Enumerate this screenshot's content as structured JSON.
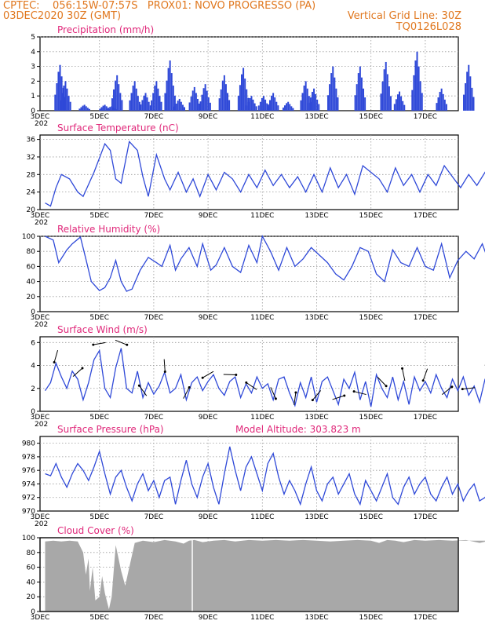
{
  "header": {
    "line1": "CPTEC:    056:15W-07:57S   PROX01: NOVO PROGRESSO (PA)",
    "line2": "03DEC2020 30Z (GMT)",
    "grid_note": "Vertical Grid Line: 30Z",
    "run_code": "TQ0126L028"
  },
  "date_labels": [
    "3DEC",
    "5DEC",
    "7DEC",
    "9DEC",
    "11DEC",
    "13DEC",
    "15DEC",
    "17DEC"
  ],
  "cut_label": "202",
  "colors": {
    "line": "#2f49d8",
    "bar": "#2f49d8",
    "title": "#e0287a",
    "header": "#e0771e",
    "cloud": "#a8a8a8"
  },
  "chart_data": [
    {
      "type": "bar",
      "title": "Precipitation (mm/h)",
      "ylim": [
        0,
        5
      ],
      "yticks": [
        "0",
        "1",
        "2",
        "3",
        "4",
        "5"
      ],
      "x_unit": "days since 03DEC 06Z",
      "bursts": [
        {
          "x": 0.55,
          "peak": 3.1
        },
        {
          "x": 0.75,
          "peak": 2.0
        },
        {
          "x": 1.45,
          "peak": 0.4
        },
        {
          "x": 2.2,
          "peak": 0.4
        },
        {
          "x": 2.45,
          "peak": 0.3
        },
        {
          "x": 2.65,
          "peak": 2.4
        },
        {
          "x": 3.3,
          "peak": 2.0
        },
        {
          "x": 3.7,
          "peak": 1.2
        },
        {
          "x": 4.1,
          "peak": 2.0
        },
        {
          "x": 4.6,
          "peak": 3.4
        },
        {
          "x": 4.95,
          "peak": 0.8
        },
        {
          "x": 5.5,
          "peak": 1.6
        },
        {
          "x": 5.9,
          "peak": 1.8
        },
        {
          "x": 6.6,
          "peak": 2.4
        },
        {
          "x": 7.3,
          "peak": 2.9
        },
        {
          "x": 7.6,
          "peak": 1.0
        },
        {
          "x": 8.05,
          "peak": 1.0
        },
        {
          "x": 8.4,
          "peak": 1.2
        },
        {
          "x": 8.95,
          "peak": 0.6
        },
        {
          "x": 9.6,
          "peak": 2.0
        },
        {
          "x": 9.9,
          "peak": 1.5
        },
        {
          "x": 10.6,
          "peak": 3.0
        },
        {
          "x": 11.6,
          "peak": 3.0
        },
        {
          "x": 12.55,
          "peak": 3.3
        },
        {
          "x": 13.05,
          "peak": 1.3
        },
        {
          "x": 13.7,
          "peak": 4.0
        },
        {
          "x": 14.6,
          "peak": 1.5
        },
        {
          "x": 15.6,
          "peak": 3.1
        }
      ]
    },
    {
      "type": "line",
      "title": "Surface Temperature (nC)",
      "ylim": [
        20,
        37
      ],
      "yticks": [
        "20",
        "24",
        "28",
        "32",
        "36"
      ],
      "x_unit": "days since 03DEC 06Z",
      "x": [
        0,
        0.2,
        0.4,
        0.6,
        0.9,
        1.2,
        1.4,
        1.8,
        2.2,
        2.4,
        2.6,
        2.8,
        3.1,
        3.4,
        3.6,
        3.8,
        4.1,
        4.4,
        4.6,
        4.9,
        5.2,
        5.45,
        5.7,
        6.0,
        6.3,
        6.6,
        6.9,
        7.2,
        7.5,
        7.8,
        8.1,
        8.4,
        8.7,
        9.0,
        9.3,
        9.6,
        9.9,
        10.2,
        10.5,
        10.8,
        11.1,
        11.4,
        11.7,
        12.0,
        12.3,
        12.6,
        12.9,
        13.2,
        13.5,
        13.8,
        14.1,
        14.4,
        14.7,
        15.0,
        15.3,
        15.6,
        15.9,
        16.2,
        16.4
      ],
      "y": [
        21.5,
        20.8,
        25.0,
        28.0,
        27.0,
        24.0,
        23.0,
        28.5,
        35.0,
        33.5,
        27.0,
        26.0,
        35.5,
        33.5,
        27.5,
        23.0,
        32.5,
        27.0,
        24.5,
        28.5,
        24.0,
        27.0,
        23.0,
        28.0,
        24.5,
        28.5,
        27.0,
        24.0,
        28.0,
        25.0,
        29.0,
        25.5,
        28.0,
        25.0,
        27.5,
        24.0,
        28.0,
        24.0,
        29.5,
        25.0,
        28.0,
        23.5,
        30.0,
        28.5,
        27.0,
        24.0,
        29.5,
        25.5,
        28.0,
        24.0,
        28.0,
        25.5,
        30.0,
        27.5,
        25.0,
        28.0,
        25.5,
        28.5,
        27.0
      ]
    },
    {
      "type": "line",
      "title": "Relative Humidity (%)",
      "ylim": [
        0,
        100
      ],
      "yticks": [
        "0",
        "20",
        "40",
        "60",
        "80",
        "100"
      ],
      "x_unit": "days since 03DEC 06Z",
      "x": [
        0,
        0.3,
        0.5,
        0.8,
        1.0,
        1.3,
        1.5,
        1.7,
        2.0,
        2.2,
        2.4,
        2.6,
        2.8,
        3.0,
        3.2,
        3.5,
        3.8,
        4.1,
        4.3,
        4.6,
        4.8,
        5.0,
        5.3,
        5.6,
        5.8,
        6.1,
        6.3,
        6.6,
        6.9,
        7.2,
        7.5,
        7.8,
        8.0,
        8.3,
        8.6,
        8.9,
        9.2,
        9.5,
        9.8,
        10.1,
        10.4,
        10.7,
        11.0,
        11.3,
        11.6,
        11.9,
        12.2,
        12.5,
        12.8,
        13.1,
        13.4,
        13.7,
        14.0,
        14.3,
        14.6,
        14.9,
        15.2,
        15.5,
        15.8,
        16.1,
        16.4
      ],
      "y": [
        100,
        95,
        65,
        82,
        90,
        99,
        70,
        40,
        28,
        32,
        45,
        68,
        40,
        27,
        30,
        55,
        72,
        65,
        60,
        88,
        55,
        70,
        85,
        60,
        90,
        55,
        62,
        85,
        60,
        52,
        88,
        65,
        100,
        80,
        55,
        85,
        60,
        70,
        85,
        75,
        65,
        50,
        42,
        60,
        85,
        80,
        50,
        40,
        82,
        65,
        60,
        85,
        60,
        55,
        90,
        45,
        68,
        80,
        70,
        90,
        60
      ]
    },
    {
      "type": "line",
      "title": "Surface Wind (m/s)",
      "ylim": [
        0,
        6.5
      ],
      "yticks": [
        "0",
        "2",
        "4",
        "6"
      ],
      "x_unit": "days since 03DEC 06Z",
      "x": [
        0,
        0.2,
        0.4,
        0.6,
        0.8,
        1.0,
        1.2,
        1.4,
        1.6,
        1.8,
        2.0,
        2.2,
        2.4,
        2.6,
        2.8,
        3.0,
        3.2,
        3.4,
        3.6,
        3.8,
        4.0,
        4.2,
        4.4,
        4.6,
        4.8,
        5.0,
        5.2,
        5.4,
        5.6,
        5.8,
        6.0,
        6.2,
        6.4,
        6.6,
        6.8,
        7.0,
        7.2,
        7.4,
        7.6,
        7.8,
        8.0,
        8.2,
        8.4,
        8.6,
        8.8,
        9.0,
        9.2,
        9.4,
        9.6,
        9.8,
        10.0,
        10.2,
        10.4,
        10.6,
        10.8,
        11.0,
        11.2,
        11.4,
        11.6,
        11.8,
        12.0,
        12.2,
        12.4,
        12.6,
        12.8,
        13.0,
        13.2,
        13.4,
        13.6,
        13.8,
        14.0,
        14.2,
        14.4,
        14.6,
        14.8,
        15.0,
        15.2,
        15.4,
        15.6,
        15.8,
        16.0,
        16.2,
        16.4
      ],
      "y": [
        1.8,
        2.5,
        4.2,
        3.0,
        2.0,
        3.5,
        2.8,
        1.0,
        2.5,
        4.5,
        5.3,
        2.0,
        1.2,
        3.8,
        5.5,
        2.0,
        1.6,
        3.5,
        1.2,
        2.5,
        1.5,
        2.2,
        3.4,
        1.6,
        2.0,
        3.2,
        1.0,
        2.5,
        3.0,
        1.8,
        2.6,
        3.2,
        2.0,
        1.4,
        2.6,
        3.0,
        1.2,
        2.4,
        1.6,
        3.0,
        2.0,
        2.4,
        1.0,
        2.8,
        3.0,
        1.6,
        0.5,
        2.5,
        1.2,
        3.0,
        0.8,
        2.6,
        3.0,
        1.8,
        0.6,
        2.8,
        2.0,
        3.4,
        1.0,
        2.6,
        0.4,
        3.2,
        2.0,
        1.2,
        3.0,
        1.0,
        2.6,
        0.6,
        3.0,
        1.8,
        2.6,
        1.6,
        3.2,
        2.0,
        1.2,
        2.8,
        1.8,
        3.0,
        1.4,
        2.2,
        0.8,
        2.8,
        3.2
      ]
    },
    {
      "type": "line",
      "title": "Surface Pressure (hPa)",
      "annotation": "Model Altitude: 303.823 m",
      "ylim": [
        970,
        981
      ],
      "yticks": [
        "970",
        "972",
        "974",
        "976",
        "978",
        "980"
      ],
      "x_unit": "days since 03DEC 06Z",
      "x": [
        0,
        0.2,
        0.4,
        0.6,
        0.8,
        1.0,
        1.2,
        1.4,
        1.6,
        1.8,
        2.0,
        2.2,
        2.4,
        2.6,
        2.8,
        3.0,
        3.2,
        3.4,
        3.6,
        3.8,
        4.0,
        4.2,
        4.4,
        4.6,
        4.8,
        5.0,
        5.2,
        5.4,
        5.6,
        5.8,
        6.0,
        6.2,
        6.4,
        6.6,
        6.8,
        7.0,
        7.2,
        7.4,
        7.6,
        7.8,
        8.0,
        8.2,
        8.4,
        8.6,
        8.8,
        9.0,
        9.2,
        9.4,
        9.6,
        9.8,
        10.0,
        10.2,
        10.4,
        10.6,
        10.8,
        11.0,
        11.2,
        11.4,
        11.6,
        11.8,
        12.0,
        12.2,
        12.4,
        12.6,
        12.8,
        13.0,
        13.2,
        13.4,
        13.6,
        13.8,
        14.0,
        14.2,
        14.4,
        14.6,
        14.8,
        15.0,
        15.2,
        15.4,
        15.6,
        15.8,
        16.0,
        16.2,
        16.4
      ],
      "y": [
        975.5,
        975.2,
        977.0,
        975.0,
        973.5,
        975.5,
        977.0,
        976.0,
        974.5,
        976.5,
        978.8,
        975.5,
        972.5,
        975.0,
        976.0,
        973.5,
        971.5,
        974.0,
        975.5,
        973.0,
        974.5,
        972.0,
        974.5,
        975.0,
        971.0,
        974.5,
        977.5,
        974.0,
        972.0,
        975.0,
        977.0,
        973.5,
        971.0,
        975.5,
        979.5,
        976.0,
        973.0,
        976.5,
        978.0,
        975.5,
        973.0,
        977.0,
        978.5,
        975.0,
        972.5,
        974.5,
        973.0,
        971.0,
        974.0,
        976.5,
        973.0,
        971.5,
        974.0,
        975.0,
        972.5,
        974.0,
        975.5,
        972.5,
        971.0,
        974.5,
        973.0,
        971.5,
        973.5,
        975.5,
        972.0,
        971.0,
        973.5,
        975.0,
        972.5,
        974.0,
        975.0,
        972.5,
        971.5,
        973.5,
        975.0,
        972.5,
        974.0,
        971.5,
        973.0,
        974.0,
        971.5,
        972.0,
        973.5
      ]
    },
    {
      "type": "area",
      "title": "Cloud Cover (%)",
      "ylim": [
        0,
        100
      ],
      "yticks": [
        "0",
        "20",
        "40",
        "60",
        "80",
        "100"
      ],
      "x_unit": "days since 03DEC 06Z",
      "x": [
        0,
        0.3,
        0.6,
        0.9,
        1.2,
        1.4,
        1.5,
        1.6,
        1.65,
        1.75,
        1.85,
        2.0,
        2.1,
        2.2,
        2.35,
        2.45,
        2.6,
        2.8,
        2.95,
        3.1,
        3.3,
        3.6,
        4.0,
        4.4,
        4.8,
        5.1,
        5.3,
        5.5,
        5.8,
        6.2,
        6.6,
        7.0,
        7.5,
        8.0,
        8.5,
        9.0,
        9.5,
        10.0,
        10.5,
        11.0,
        11.5,
        12.0,
        12.3,
        12.6,
        12.9,
        13.2,
        13.6,
        14.0,
        14.5,
        15.0,
        15.5,
        16.0,
        16.4
      ],
      "y": [
        95,
        96,
        95,
        96,
        95,
        80,
        50,
        72,
        28,
        60,
        15,
        20,
        48,
        25,
        3,
        20,
        90,
        55,
        35,
        60,
        93,
        96,
        94,
        97,
        95,
        92,
        96,
        97,
        94,
        96,
        97,
        95,
        97,
        96,
        97,
        96,
        97,
        96,
        95,
        96,
        97,
        96,
        93,
        97,
        96,
        94,
        97,
        96,
        97,
        96,
        97,
        93,
        96
      ]
    }
  ]
}
